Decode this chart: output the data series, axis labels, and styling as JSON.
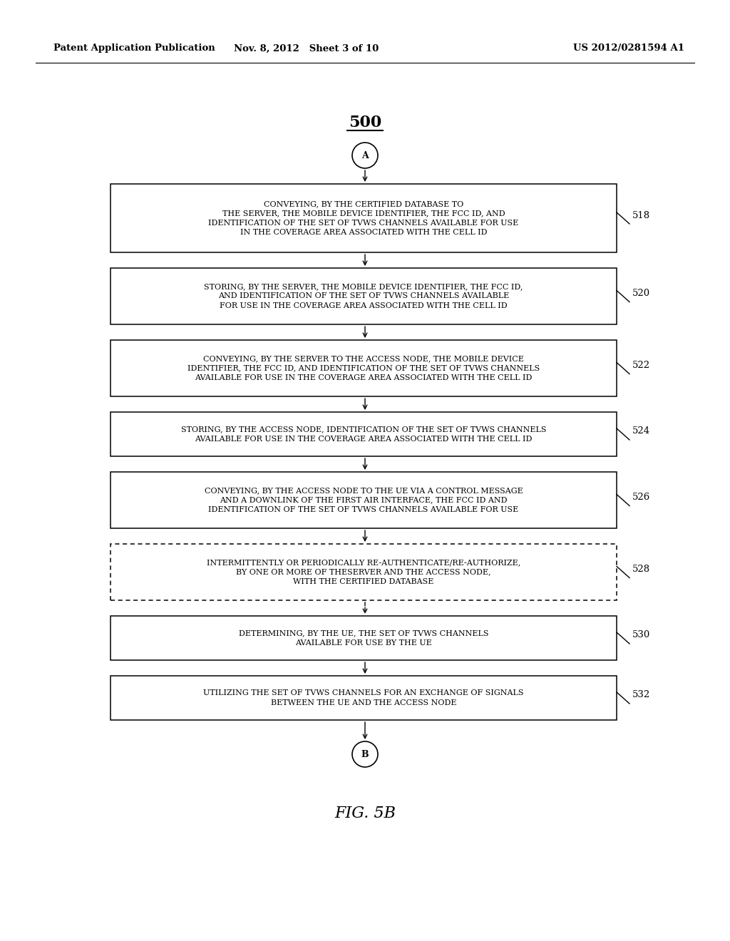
{
  "title": "500",
  "header_left": "Patent Application Publication",
  "header_middle": "Nov. 8, 2012   Sheet 3 of 10",
  "header_right": "US 2012/0281594 A1",
  "figure_label": "FIG. 5B",
  "start_connector": "A",
  "end_connector": "B",
  "box_data": [
    {
      "label": "518",
      "text": "CONVEYING, BY THE CERTIFIED DATABASE TO\nTHE SERVER, THE MOBILE DEVICE IDENTIFIER, THE FCC ID, AND\nIDENTIFICATION OF THE SET OF TVWS CHANNELS AVAILABLE FOR USE\nIN THE COVERAGE AREA ASSOCIATED WITH THE CELL ID",
      "dashed": false,
      "nlines": 4
    },
    {
      "label": "520",
      "text": "STORING, BY THE SERVER, THE MOBILE DEVICE IDENTIFIER, THE FCC ID,\nAND IDENTIFICATION OF THE SET OF TVWS CHANNELS AVAILABLE\nFOR USE IN THE COVERAGE AREA ASSOCIATED WITH THE CELL ID",
      "dashed": false,
      "nlines": 3
    },
    {
      "label": "522",
      "text": "CONVEYING, BY THE SERVER TO THE ACCESS NODE, THE MOBILE DEVICE\nIDENTIFIER, THE FCC ID, AND IDENTIFICATION OF THE SET OF TVWS CHANNELS\nAVAILABLE FOR USE IN THE COVERAGE AREA ASSOCIATED WITH THE CELL ID",
      "dashed": false,
      "nlines": 3
    },
    {
      "label": "524",
      "text": "STORING, BY THE ACCESS NODE, IDENTIFICATION OF THE SET OF TVWS CHANNELS\nAVAILABLE FOR USE IN THE COVERAGE AREA ASSOCIATED WITH THE CELL ID",
      "dashed": false,
      "nlines": 2
    },
    {
      "label": "526",
      "text": "CONVEYING, BY THE ACCESS NODE TO THE UE VIA A CONTROL MESSAGE\nAND A DOWNLINK OF THE FIRST AIR INTERFACE, THE FCC ID AND\nIDENTIFICATION OF THE SET OF TVWS CHANNELS AVAILABLE FOR USE",
      "dashed": false,
      "nlines": 3
    },
    {
      "label": "528",
      "text": "INTERMITTENTLY OR PERIODICALLY RE-AUTHENTICATE/RE-AUTHORIZE,\nBY ONE OR MORE OF THESERVER AND THE ACCESS NODE,\nWITH THE CERTIFIED DATABASE",
      "dashed": true,
      "nlines": 3
    },
    {
      "label": "530",
      "text": "DETERMINING, BY THE UE, THE SET OF TVWS CHANNELS\nAVAILABLE FOR USE BY THE UE",
      "dashed": false,
      "nlines": 2
    },
    {
      "label": "532",
      "text": "UTILIZING THE SET OF TVWS CHANNELS FOR AN EXCHANGE OF SIGNALS\nBETWEEN THE UE AND THE ACCESS NODE",
      "dashed": false,
      "nlines": 2
    }
  ],
  "bg_color": "#ffffff",
  "box_color": "#000000",
  "text_color": "#000000",
  "font_size": 8.0,
  "header_font_size": 9.5,
  "title_font_size": 16,
  "label_font_size": 9.5,
  "fig_label_font_size": 16
}
